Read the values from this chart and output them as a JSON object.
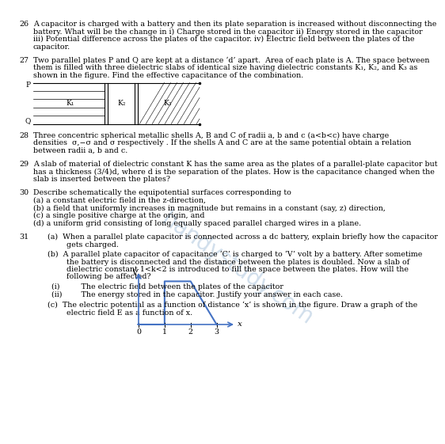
{
  "bg_color": "#ffffff",
  "text_color": "#000000",
  "watermark_color": "#c8d8e8",
  "line_color": "#4472c4",
  "q26_lines": [
    "A capacitor is charged with a battery and then its plate separation is increased without disconnecting the",
    "battery. What will be the change in i) Charge stored in the capacitor ii) Energy stored in the capacitor",
    "iii) Potential difference across the plates of the capacitor. iv) Electric field between the plates of the",
    "capacitor."
  ],
  "q27_lines": [
    "Two parallel plates P and Q are kept at a distance ‘d’ apart.  Area of each plate is A. The space between",
    "them is filled with three dielectric slabs of identical size having dielectric constants K₁, K₂, and K₃ as",
    "shown in the figure. Find the effective capacitance of the combination."
  ],
  "q28_lines": [
    "Three concentric spherical metallic shells A, B and C of radii a, b and c (a<b<c) have charge",
    "densities  σ,−σ and σ respectively . If the shells A and C are at the same potential obtain a relation",
    "between radii a, b and c."
  ],
  "q29_lines": [
    "A slab of material of dielectric constant K has the same area as the plates of a parallel-plate capacitor but",
    "has a thickness (3/4)d, where d is the separation of the plates. How is the capacitance changed when the",
    "slab is inserted between the plates?"
  ],
  "q30_lines": [
    "Describe schematically the equipotential surfaces corresponding to",
    "(a) a constant electric field in the z-direction,",
    "(b) a field that uniformly increases in magnitude but remains in a constant (say, z) direction,",
    "(c) a single positive charge at the origin, and",
    "(d) a uniform grid consisting of long equally spaced parallel charged wires in a plane."
  ],
  "q31a_lines": [
    "(a)  When a parallel plate capacitor is connected across a dc battery, explain briefly how the capacitor",
    "        gets charged."
  ],
  "q31b_lines": [
    "(b)  A parallel plate capacitor of capacitance ‘C’ is charged to ‘V’ volt by a battery. After sometime",
    "        the battery is disconnected and the distance between the plates is doubled. Now a slab of",
    "        dielectric constant 1<k<2 is introduced to fill the space between the plates. How will the",
    "        following be affected?"
  ],
  "q31bi_lines": [
    "(i)         The electric field between the plates of the capacitor",
    "(ii)        The energy stored in the capacitor. Justify your answer in each case."
  ],
  "q31c_lines": [
    "(c)  The electric potential as a function of distance ‘x’ is shown in the figure. Draw a graph of the",
    "        electric field E as a function of x."
  ],
  "graph_color": "#4472c4",
  "graph_x": [
    0,
    1,
    1,
    2,
    3
  ],
  "graph_y": [
    0,
    0,
    1,
    1,
    0
  ],
  "graph_xticks": [
    0,
    1,
    2,
    3
  ],
  "graph_xlabel": "x",
  "graph_ylabel": "V"
}
